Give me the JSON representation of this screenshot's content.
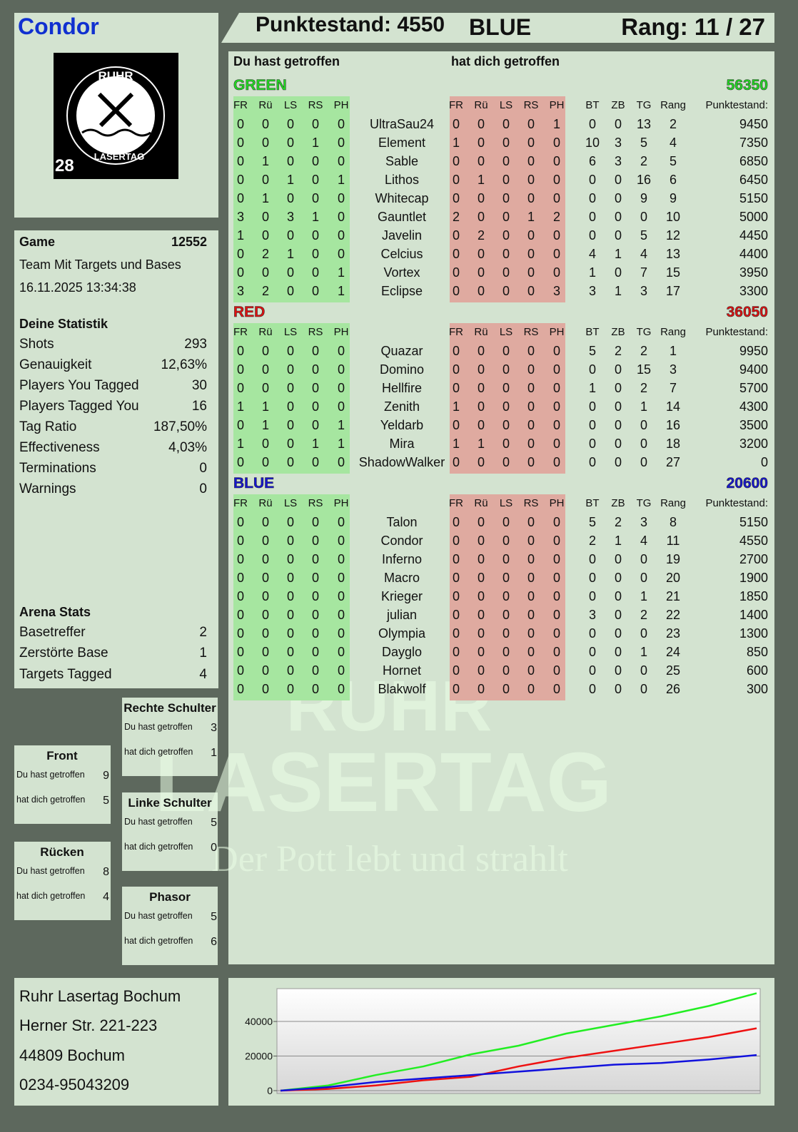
{
  "header": {
    "player": "Condor",
    "score": "Punktestand: 4550",
    "team": "BLUE",
    "rank": "Rang: 11 / 27"
  },
  "logo": {
    "top": "RUHR",
    "bottom": "LASERTAG",
    "number": "28"
  },
  "game": {
    "label": "Game",
    "id": "12552",
    "mode": "Team Mit Targets und Bases",
    "date": "16.11.2025 13:34:38"
  },
  "stats": {
    "title": "Deine Statistik",
    "rows": [
      [
        "Shots",
        "293"
      ],
      [
        "Genauigkeit",
        "12,63%"
      ],
      [
        "Players You Tagged",
        "30"
      ],
      [
        "Players Tagged You",
        "16"
      ],
      [
        "Tag Ratio",
        "187,50%"
      ],
      [
        "Effectiveness",
        "4,03%"
      ],
      [
        "Terminations",
        "0"
      ],
      [
        "Warnings",
        "0"
      ]
    ]
  },
  "arena": {
    "title": "Arena Stats",
    "rows": [
      [
        "Basetreffer",
        "2"
      ],
      [
        "Zerstörte Base",
        "1"
      ],
      [
        "Targets Tagged",
        "4"
      ]
    ]
  },
  "zones": [
    {
      "title": "Rechte Schulter",
      "rows": [
        [
          "Du hast getroffen",
          "3"
        ],
        [
          "hat dich getroffen",
          "1"
        ]
      ]
    },
    {
      "title": "Front",
      "rows": [
        [
          "Du hast getroffen",
          "9"
        ],
        [
          "hat dich getroffen",
          "5"
        ]
      ]
    },
    {
      "title": "Linke Schulter",
      "rows": [
        [
          "Du hast getroffen",
          "5"
        ],
        [
          "hat dich getroffen",
          "0"
        ]
      ]
    },
    {
      "title": "Rücken",
      "rows": [
        [
          "Du hast getroffen",
          "8"
        ],
        [
          "hat dich getroffen",
          "4"
        ]
      ]
    },
    {
      "title": "Phasor",
      "rows": [
        [
          "Du hast getroffen",
          "5"
        ],
        [
          "hat dich getroffen",
          "6"
        ]
      ]
    }
  ],
  "address": [
    "Ruhr Lasertag Bochum",
    "Herner Str. 221-223",
    "44809 Bochum",
    "0234-95043209"
  ],
  "watermark": {
    "line1": "RUHR",
    "line2": "LASERTAG",
    "slogan": "Der Pott lebt und strahlt"
  },
  "table": {
    "hit_heading": "Du hast getroffen",
    "got_heading": "hat dich getroffen",
    "hit_columns": [
      "FR",
      "Rü",
      "LS",
      "RS",
      "PH"
    ],
    "got_columns": [
      "FR",
      "Rü",
      "LS",
      "RS",
      "PH"
    ],
    "extra_columns": [
      "BT",
      "ZB",
      "TG",
      "Rang",
      "Punktestand:"
    ],
    "teams": [
      {
        "name": "GREEN",
        "total": "56350",
        "color": "#22dd22",
        "players": [
          {
            "name": "UltraSau24",
            "hit": [
              0,
              0,
              0,
              0,
              0
            ],
            "got": [
              0,
              0,
              0,
              0,
              1
            ],
            "bt": 0,
            "zb": 0,
            "tg": 13,
            "rang": 2,
            "score": 9450
          },
          {
            "name": "Element",
            "hit": [
              0,
              0,
              0,
              1,
              0
            ],
            "got": [
              1,
              0,
              0,
              0,
              0
            ],
            "bt": 10,
            "zb": 3,
            "tg": 5,
            "rang": 4,
            "score": 7350
          },
          {
            "name": "Sable",
            "hit": [
              0,
              1,
              0,
              0,
              0
            ],
            "got": [
              0,
              0,
              0,
              0,
              0
            ],
            "bt": 6,
            "zb": 3,
            "tg": 2,
            "rang": 5,
            "score": 6850
          },
          {
            "name": "Lithos",
            "hit": [
              0,
              0,
              1,
              0,
              1
            ],
            "got": [
              0,
              1,
              0,
              0,
              0
            ],
            "bt": 0,
            "zb": 0,
            "tg": 16,
            "rang": 6,
            "score": 6450
          },
          {
            "name": "Whitecap",
            "hit": [
              0,
              1,
              0,
              0,
              0
            ],
            "got": [
              0,
              0,
              0,
              0,
              0
            ],
            "bt": 0,
            "zb": 0,
            "tg": 9,
            "rang": 9,
            "score": 5150
          },
          {
            "name": "Gauntlet",
            "hit": [
              3,
              0,
              3,
              1,
              0
            ],
            "got": [
              2,
              0,
              0,
              1,
              2
            ],
            "bt": 0,
            "zb": 0,
            "tg": 0,
            "rang": 10,
            "score": 5000
          },
          {
            "name": "Javelin",
            "hit": [
              1,
              0,
              0,
              0,
              0
            ],
            "got": [
              0,
              2,
              0,
              0,
              0
            ],
            "bt": 0,
            "zb": 0,
            "tg": 5,
            "rang": 12,
            "score": 4450
          },
          {
            "name": "Celcius",
            "hit": [
              0,
              2,
              1,
              0,
              0
            ],
            "got": [
              0,
              0,
              0,
              0,
              0
            ],
            "bt": 4,
            "zb": 1,
            "tg": 4,
            "rang": 13,
            "score": 4400
          },
          {
            "name": "Vortex",
            "hit": [
              0,
              0,
              0,
              0,
              1
            ],
            "got": [
              0,
              0,
              0,
              0,
              0
            ],
            "bt": 1,
            "zb": 0,
            "tg": 7,
            "rang": 15,
            "score": 3950
          },
          {
            "name": "Eclipse",
            "hit": [
              3,
              2,
              0,
              0,
              1
            ],
            "got": [
              0,
              0,
              0,
              0,
              3
            ],
            "bt": 3,
            "zb": 1,
            "tg": 3,
            "rang": 17,
            "score": 3300
          }
        ]
      },
      {
        "name": "RED",
        "total": "36050",
        "color": "#e01010",
        "players": [
          {
            "name": "Quazar",
            "hit": [
              0,
              0,
              0,
              0,
              0
            ],
            "got": [
              0,
              0,
              0,
              0,
              0
            ],
            "bt": 5,
            "zb": 2,
            "tg": 2,
            "rang": 1,
            "score": 9950
          },
          {
            "name": "Domino",
            "hit": [
              0,
              0,
              0,
              0,
              0
            ],
            "got": [
              0,
              0,
              0,
              0,
              0
            ],
            "bt": 0,
            "zb": 0,
            "tg": 15,
            "rang": 3,
            "score": 9400
          },
          {
            "name": "Hellfire",
            "hit": [
              0,
              0,
              0,
              0,
              0
            ],
            "got": [
              0,
              0,
              0,
              0,
              0
            ],
            "bt": 1,
            "zb": 0,
            "tg": 2,
            "rang": 7,
            "score": 5700
          },
          {
            "name": "Zenith",
            "hit": [
              1,
              1,
              0,
              0,
              0
            ],
            "got": [
              1,
              0,
              0,
              0,
              0
            ],
            "bt": 0,
            "zb": 0,
            "tg": 1,
            "rang": 14,
            "score": 4300
          },
          {
            "name": "Yeldarb",
            "hit": [
              0,
              1,
              0,
              0,
              1
            ],
            "got": [
              0,
              0,
              0,
              0,
              0
            ],
            "bt": 0,
            "zb": 0,
            "tg": 0,
            "rang": 16,
            "score": 3500
          },
          {
            "name": "Mira",
            "hit": [
              1,
              0,
              0,
              1,
              1
            ],
            "got": [
              1,
              1,
              0,
              0,
              0
            ],
            "bt": 0,
            "zb": 0,
            "tg": 0,
            "rang": 18,
            "score": 3200
          },
          {
            "name": "ShadowWalker",
            "hit": [
              0,
              0,
              0,
              0,
              0
            ],
            "got": [
              0,
              0,
              0,
              0,
              0
            ],
            "bt": 0,
            "zb": 0,
            "tg": 0,
            "rang": 27,
            "score": 0
          }
        ]
      },
      {
        "name": "BLUE",
        "total": "20600",
        "color": "#1515d0",
        "players": [
          {
            "name": "Talon",
            "hit": [
              0,
              0,
              0,
              0,
              0
            ],
            "got": [
              0,
              0,
              0,
              0,
              0
            ],
            "bt": 5,
            "zb": 2,
            "tg": 3,
            "rang": 8,
            "score": 5150
          },
          {
            "name": "Condor",
            "hit": [
              0,
              0,
              0,
              0,
              0
            ],
            "got": [
              0,
              0,
              0,
              0,
              0
            ],
            "bt": 2,
            "zb": 1,
            "tg": 4,
            "rang": 11,
            "score": 4550
          },
          {
            "name": "Inferno",
            "hit": [
              0,
              0,
              0,
              0,
              0
            ],
            "got": [
              0,
              0,
              0,
              0,
              0
            ],
            "bt": 0,
            "zb": 0,
            "tg": 0,
            "rang": 19,
            "score": 2700
          },
          {
            "name": "Macro",
            "hit": [
              0,
              0,
              0,
              0,
              0
            ],
            "got": [
              0,
              0,
              0,
              0,
              0
            ],
            "bt": 0,
            "zb": 0,
            "tg": 0,
            "rang": 20,
            "score": 1900
          },
          {
            "name": "Krieger",
            "hit": [
              0,
              0,
              0,
              0,
              0
            ],
            "got": [
              0,
              0,
              0,
              0,
              0
            ],
            "bt": 0,
            "zb": 0,
            "tg": 1,
            "rang": 21,
            "score": 1850
          },
          {
            "name": "julian",
            "hit": [
              0,
              0,
              0,
              0,
              0
            ],
            "got": [
              0,
              0,
              0,
              0,
              0
            ],
            "bt": 3,
            "zb": 0,
            "tg": 2,
            "rang": 22,
            "score": 1400
          },
          {
            "name": "Olympia",
            "hit": [
              0,
              0,
              0,
              0,
              0
            ],
            "got": [
              0,
              0,
              0,
              0,
              0
            ],
            "bt": 0,
            "zb": 0,
            "tg": 0,
            "rang": 23,
            "score": 1300
          },
          {
            "name": "Dayglo",
            "hit": [
              0,
              0,
              0,
              0,
              0
            ],
            "got": [
              0,
              0,
              0,
              0,
              0
            ],
            "bt": 0,
            "zb": 0,
            "tg": 1,
            "rang": 24,
            "score": 850
          },
          {
            "name": "Hornet",
            "hit": [
              0,
              0,
              0,
              0,
              0
            ],
            "got": [
              0,
              0,
              0,
              0,
              0
            ],
            "bt": 0,
            "zb": 0,
            "tg": 0,
            "rang": 25,
            "score": 600
          },
          {
            "name": "Blakwolf",
            "hit": [
              0,
              0,
              0,
              0,
              0
            ],
            "got": [
              0,
              0,
              0,
              0,
              0
            ],
            "bt": 0,
            "zb": 0,
            "tg": 0,
            "rang": 26,
            "score": 300
          }
        ]
      }
    ]
  },
  "chart": {
    "type": "line",
    "ylim": [
      0,
      59000
    ],
    "yticks": [
      0,
      20000,
      40000
    ],
    "grid": true,
    "series": [
      {
        "color": "#22ee22",
        "values": [
          0,
          3000,
          9000,
          14000,
          21000,
          26000,
          33000,
          38000,
          43000,
          49000,
          56350
        ]
      },
      {
        "color": "#ee1111",
        "values": [
          0,
          1000,
          3000,
          6000,
          8000,
          14000,
          19000,
          23000,
          27000,
          31000,
          36050
        ]
      },
      {
        "color": "#1111dd",
        "values": [
          0,
          2000,
          5000,
          7000,
          9000,
          11000,
          13000,
          15000,
          16000,
          18000,
          20600
        ]
      }
    ]
  }
}
